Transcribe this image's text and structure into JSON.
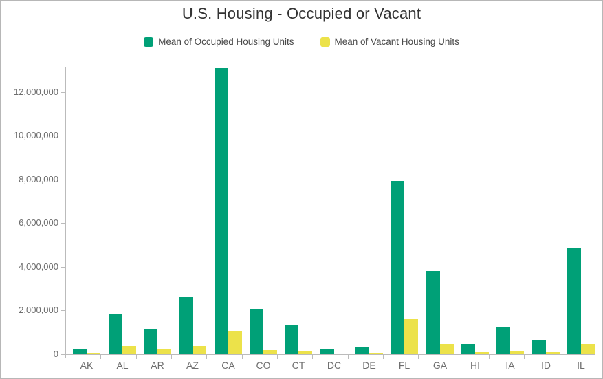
{
  "chart_data": {
    "type": "bar",
    "title": "U.S. Housing - Occupied or Vacant",
    "categories": [
      "AK",
      "AL",
      "AR",
      "AZ",
      "CA",
      "CO",
      "CT",
      "DC",
      "DE",
      "FL",
      "GA",
      "HI",
      "IA",
      "ID",
      "IL"
    ],
    "series": [
      {
        "name": "Mean of Occupied Housing Units",
        "color": "#00a077",
        "values": [
          240000,
          1850000,
          1140000,
          2600000,
          13100000,
          2070000,
          1360000,
          260000,
          340000,
          7920000,
          3800000,
          460000,
          1250000,
          630000,
          4840000
        ]
      },
      {
        "name": "Mean of Vacant Housing Units",
        "color": "#ece24a",
        "values": [
          55000,
          370000,
          210000,
          380000,
          1060000,
          200000,
          120000,
          35000,
          55000,
          1600000,
          470000,
          90000,
          140000,
          95000,
          470000
        ]
      }
    ],
    "xlabel": "",
    "ylabel": "",
    "ylim": [
      0,
      13150000
    ],
    "y_ticks": [
      0,
      2000000,
      4000000,
      6000000,
      8000000,
      10000000,
      12000000
    ],
    "y_tick_labels": [
      "0",
      "2,000,000",
      "4,000,000",
      "6,000,000",
      "8,000,000",
      "10,000,000",
      "12,000,000"
    ],
    "grid": false,
    "legend_position": "top",
    "colors": {
      "axis": "#bbbbbb",
      "tick_text": "#6e6e6e",
      "title_text": "#333333",
      "legend_text": "#4a4a4a"
    }
  }
}
